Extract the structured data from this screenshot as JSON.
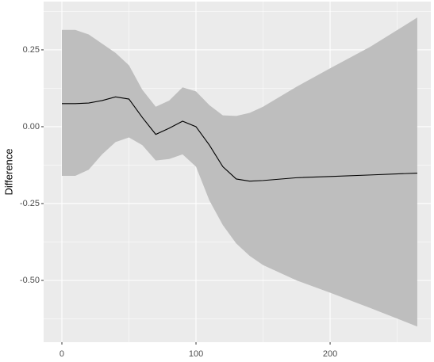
{
  "chart_data": {
    "type": "ribbon-line",
    "y_label": "Difference",
    "x": [
      0,
      10,
      20,
      30,
      40,
      50,
      60,
      70,
      80,
      90,
      100,
      110,
      120,
      130,
      140,
      150,
      175,
      200,
      230,
      265
    ],
    "fit": [
      0.075,
      0.075,
      0.077,
      0.085,
      0.097,
      0.09,
      0.03,
      -0.025,
      -0.005,
      0.018,
      0.0,
      -0.06,
      -0.13,
      -0.17,
      -0.177,
      -0.175,
      -0.166,
      -0.162,
      -0.157,
      -0.151
    ],
    "lower": [
      -0.16,
      -0.16,
      -0.14,
      -0.09,
      -0.05,
      -0.035,
      -0.06,
      -0.11,
      -0.105,
      -0.09,
      -0.13,
      -0.24,
      -0.32,
      -0.38,
      -0.42,
      -0.45,
      -0.5,
      -0.54,
      -0.59,
      -0.65
    ],
    "upper": [
      0.315,
      0.315,
      0.3,
      0.27,
      0.24,
      0.2,
      0.12,
      0.065,
      0.085,
      0.128,
      0.115,
      0.07,
      0.037,
      0.035,
      0.045,
      0.065,
      0.13,
      0.19,
      0.26,
      0.355
    ],
    "line_color": "#000000",
    "band_color": "#bebebe",
    "xlim": [
      -13.6,
      275.1
    ],
    "ylim": [
      -0.701,
      0.407
    ],
    "xticks": [
      0,
      100,
      200
    ],
    "yticks": [
      0.25,
      {
        "value": 0,
        "label": "0.00"
      },
      -0.25,
      {
        "value": -0.5,
        "label": "-0.50"
      }
    ],
    "x_minor_ticks": [
      50,
      150,
      250
    ],
    "y_minor_ticks": [
      0.375,
      0.125,
      -0.125,
      -0.375,
      -0.625
    ],
    "grid": true
  }
}
